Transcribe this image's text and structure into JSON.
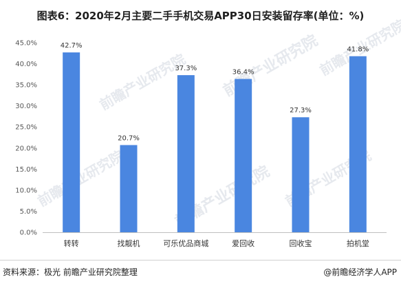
{
  "header": {
    "title": "图表6：2020年2月主要二手手机交易APP30日安装留存率(单位：%)"
  },
  "footer": {
    "source": "资料来源：极光 前瞻产业研究院整理",
    "credit": "@前瞻经济学人APP"
  },
  "watermark": {
    "text": "前瞻产业研究院"
  },
  "colors": {
    "bar": "#4a86e0",
    "axis": "#bfbfbf"
  },
  "chart_data": {
    "type": "bar",
    "categories": [
      "转转",
      "找靓机",
      "可乐优品商城",
      "爱回收",
      "回收宝",
      "拍机堂"
    ],
    "values": [
      42.7,
      20.7,
      37.3,
      36.4,
      27.3,
      41.8
    ],
    "value_labels": [
      "42.7%",
      "20.7%",
      "37.3%",
      "36.4%",
      "27.3%",
      "41.8%"
    ],
    "yticks": [
      "0.0%",
      "5.0%",
      "10.0%",
      "15.0%",
      "20.0%",
      "25.0%",
      "30.0%",
      "35.0%",
      "40.0%",
      "45.0%"
    ],
    "ylim": [
      0,
      45
    ],
    "xlabel": "",
    "ylabel": "",
    "grid": false,
    "legend": "none"
  }
}
